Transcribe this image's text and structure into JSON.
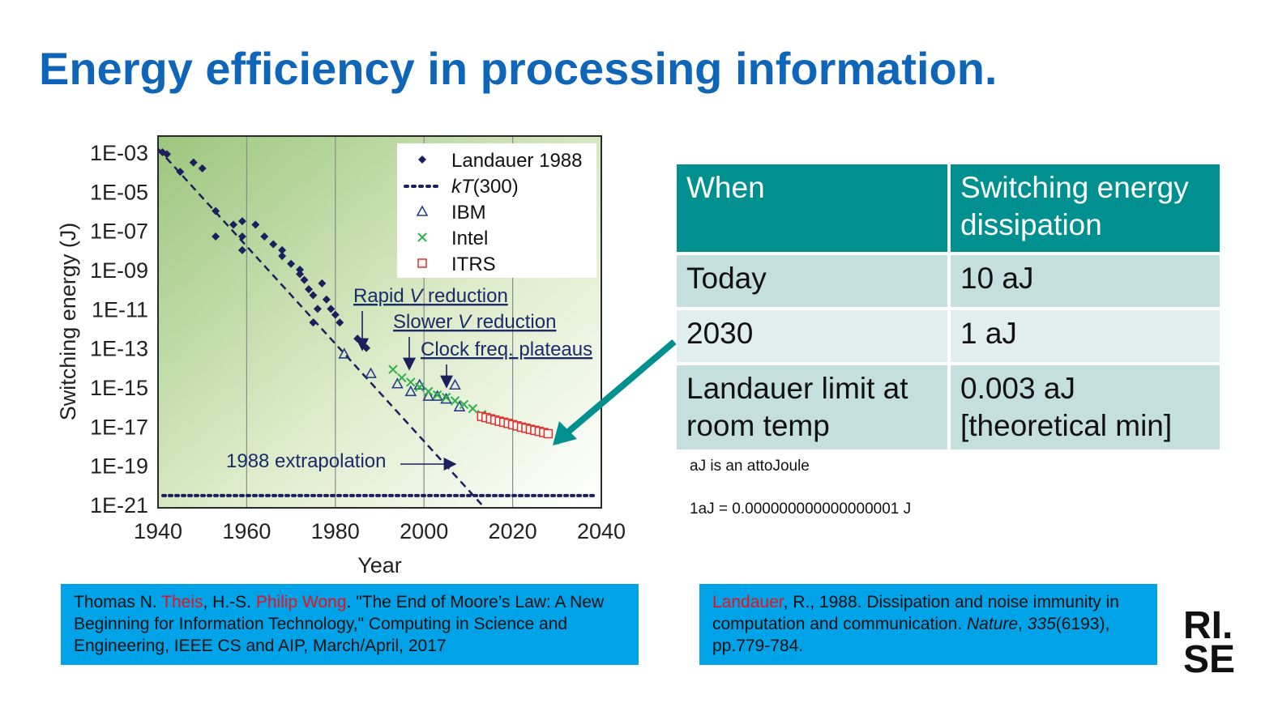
{
  "slide": {
    "title": "Energy efficiency in processing information."
  },
  "chart_data": {
    "type": "scatter",
    "ylabel": "Switching energy (J)",
    "xlabel": "Year",
    "xlim": [
      1940,
      2040
    ],
    "ylim_exponent": [
      -21,
      -3
    ],
    "y_scale": "log",
    "x_ticks": [
      "1940",
      "1960",
      "1980",
      "2000",
      "2020",
      "2040"
    ],
    "y_ticks": [
      "1E-03",
      "1E-05",
      "1E-07",
      "1E-09",
      "1E-11",
      "1E-13",
      "1E-15",
      "1E-17",
      "1E-19",
      "1E-21"
    ],
    "grid": "vertical",
    "legend_position": "top-right",
    "legend": [
      {
        "label": "Landauer 1988",
        "marker": "diamond",
        "color": "#1b1f5e"
      },
      {
        "label": "kT(300)",
        "marker": "dotted-line",
        "color": "#1b1f5e"
      },
      {
        "label": "IBM",
        "marker": "triangle",
        "color": "#2a3a8c"
      },
      {
        "label": "Intel",
        "marker": "x",
        "color": "#2eb04a"
      },
      {
        "label": "ITRS",
        "marker": "square",
        "color": "#d9342b"
      }
    ],
    "series": [
      {
        "name": "Landauer 1988",
        "marker": "diamond",
        "points": [
          [
            1941,
            0.001
          ],
          [
            1942,
            0.0008
          ],
          [
            1945,
            0.0001
          ],
          [
            1948,
            0.0003
          ],
          [
            1950,
            0.00015
          ],
          [
            1953,
            1e-06
          ],
          [
            1953,
            5e-08
          ],
          [
            1957,
            2e-07
          ],
          [
            1959,
            3e-07
          ],
          [
            1959,
            5e-08
          ],
          [
            1959,
            1e-08
          ],
          [
            1962,
            2e-07
          ],
          [
            1964,
            5e-08
          ],
          [
            1966,
            2e-08
          ],
          [
            1968,
            1e-08
          ],
          [
            1968,
            5e-09
          ],
          [
            1970,
            2e-09
          ],
          [
            1972,
            6e-10
          ],
          [
            1972,
            1e-09
          ],
          [
            1973,
            3e-10
          ],
          [
            1974,
            1e-10
          ],
          [
            1975,
            5e-11
          ],
          [
            1976,
            1e-11
          ],
          [
            1977,
            2e-10
          ],
          [
            1978,
            3e-11
          ],
          [
            1979,
            1e-11
          ],
          [
            1980,
            5e-12
          ],
          [
            1981,
            2e-12
          ],
          [
            1975,
            2e-12
          ],
          [
            1985,
            3e-13
          ],
          [
            1987,
            1e-13
          ]
        ]
      },
      {
        "name": "kT(300)",
        "marker": "dotted-line",
        "points": [
          [
            1940,
            2.9e-21
          ],
          [
            2040,
            2.9e-21
          ]
        ]
      },
      {
        "name": "IBM",
        "marker": "triangle",
        "points": [
          [
            1982,
            5e-14
          ],
          [
            1988,
            5e-15
          ],
          [
            1994,
            1.5e-15
          ],
          [
            1997,
            6e-16
          ],
          [
            1999,
            1.3e-15
          ],
          [
            2001,
            3.5e-16
          ],
          [
            2003,
            3.5e-16
          ],
          [
            2005,
            2.5e-16
          ],
          [
            2007,
            1.3e-15
          ],
          [
            2008,
            1e-16
          ]
        ]
      },
      {
        "name": "Intel",
        "marker": "x",
        "points": [
          [
            1993,
            8e-15
          ],
          [
            1995,
            3e-15
          ],
          [
            1997,
            1.8e-15
          ],
          [
            1999,
            1e-15
          ],
          [
            2001,
            6e-16
          ],
          [
            2003,
            4e-16
          ],
          [
            2005,
            3e-16
          ],
          [
            2007,
            2e-16
          ],
          [
            2009,
            1.3e-16
          ],
          [
            2011,
            8e-17
          ],
          [
            2013,
            4e-17
          ]
        ]
      },
      {
        "name": "ITRS",
        "marker": "square",
        "points": [
          [
            2013,
            3.2e-17
          ],
          [
            2014,
            2.8e-17
          ],
          [
            2015,
            2.4e-17
          ],
          [
            2016,
            2.1e-17
          ],
          [
            2017,
            1.8e-17
          ],
          [
            2018,
            1.6e-17
          ],
          [
            2019,
            1.4e-17
          ],
          [
            2020,
            1.2e-17
          ],
          [
            2021,
            1.05e-17
          ],
          [
            2022,
            9e-18
          ],
          [
            2023,
            8e-18
          ],
          [
            2024,
            7e-18
          ],
          [
            2025,
            6.2e-18
          ],
          [
            2026,
            5.5e-18
          ],
          [
            2027,
            4.8e-18
          ],
          [
            2028,
            4.2e-18
          ]
        ]
      }
    ],
    "trend_line": {
      "from": [
        1940,
        0.0015
      ],
      "to": [
        2013,
        1e-21
      ]
    },
    "annotations": [
      {
        "text": "Rapid V reduction",
        "parts": [
          "Rapid ",
          "V",
          " reduction"
        ],
        "arrow_to_year": 1986,
        "arrow_to_value": 1e-13
      },
      {
        "text": "Slower V reduction",
        "parts": [
          "Slower ",
          "V",
          " reduction"
        ],
        "arrow_to_year": 1997,
        "arrow_to_value": 2e-15
      },
      {
        "text": "Clock freq. plateaus",
        "parts": [
          "Clock freq. plateaus"
        ],
        "arrow_to_year": 2005,
        "arrow_to_value": 2e-15
      },
      {
        "text": "1988 extrapolation",
        "parts": [
          "1988 extrapolation"
        ],
        "arrow_to_year": 2008,
        "arrow_to_value": 3e-19
      }
    ]
  },
  "table": {
    "headers": [
      "When",
      "Switching energy dissipation"
    ],
    "rows": [
      [
        "Today",
        "10 aJ"
      ],
      [
        "2030",
        "1 aJ"
      ],
      [
        "Landauer limit at room temp",
        "0.003 aJ [theoretical min]"
      ]
    ]
  },
  "notes": {
    "line1": "aJ is an attoJoule",
    "line2": "1aJ = 0.000000000000000001 J"
  },
  "references": {
    "left": {
      "p1": "Thomas N. ",
      "p2": "Theis",
      "p3": ", H.-S. ",
      "p4": "Philip Wong",
      "p5": ". \"The End of Moore’s Law: A New Beginning for Information Technology,\" Computing in Science and Engineering, IEEE CS and AIP, March/April, 2017"
    },
    "right": {
      "p1": "Landauer",
      "p2": ", R., 1988. Dissipation and noise immunity in computation and communication. ",
      "p3": "Nature",
      "p4": ", ",
      "p5": "335",
      "p6": "(6193), pp.779-784."
    }
  },
  "logo": {
    "line1": "RI.",
    "line2": "SE"
  },
  "colors": {
    "title": "#0f66b8",
    "table_header": "#00908f",
    "table_row_dark": "#c5dede",
    "table_row_light": "#e1eeee",
    "reference_box": "#00a2e8",
    "arrow": "#00908f",
    "highlight": "#e8121c"
  }
}
